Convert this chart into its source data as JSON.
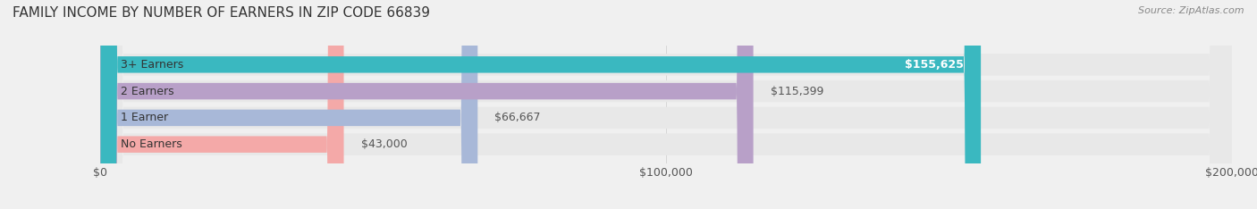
{
  "title": "FAMILY INCOME BY NUMBER OF EARNERS IN ZIP CODE 66839",
  "source_text": "Source: ZipAtlas.com",
  "categories": [
    "No Earners",
    "1 Earner",
    "2 Earners",
    "3+ Earners"
  ],
  "values": [
    43000,
    66667,
    115399,
    155625
  ],
  "bar_colors": [
    "#f4a9a8",
    "#a8b8d8",
    "#b8a0c8",
    "#3ab8c0"
  ],
  "value_labels": [
    "$43,000",
    "$66,667",
    "$115,399",
    "$155,625"
  ],
  "value_label_colors": [
    "#555555",
    "#555555",
    "#555555",
    "#ffffff"
  ],
  "xlim": [
    0,
    200000
  ],
  "xtick_values": [
    0,
    100000,
    200000
  ],
  "xtick_labels": [
    "$0",
    "$100,000",
    "$200,000"
  ],
  "background_color": "#f0f0f0",
  "bar_background_color": "#e8e8e8",
  "title_fontsize": 11,
  "label_fontsize": 9,
  "value_fontsize": 9,
  "source_fontsize": 8
}
